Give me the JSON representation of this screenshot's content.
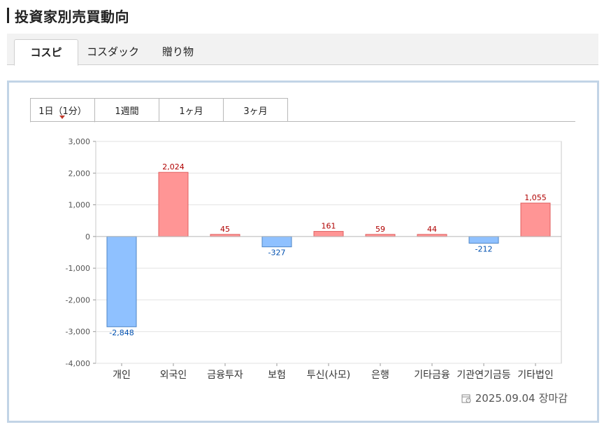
{
  "page": {
    "title": "投資家別売買動向"
  },
  "main_tabs": [
    {
      "label": "コスピ",
      "active": true
    },
    {
      "label": "コスダック",
      "active": false
    },
    {
      "label": "贈り物",
      "active": false
    }
  ],
  "period_tabs": [
    {
      "label": "1日（1分）",
      "active": true
    },
    {
      "label": "1週間",
      "active": false
    },
    {
      "label": "1ヶ月",
      "active": false
    },
    {
      "label": "3ヶ月",
      "active": false
    }
  ],
  "footer": {
    "date": "2025.09.04",
    "status": "장마감"
  },
  "colors": {
    "positive": "#ff9595",
    "positive_edge": "#e06060",
    "negative": "#8fc1ff",
    "negative_edge": "#4f86c6",
    "positive_label": "#b00000",
    "negative_label": "#0050b0"
  },
  "chart_data": {
    "type": "bar",
    "categories": [
      "개인",
      "외국인",
      "금융투자",
      "보험",
      "투신(사모)",
      "은행",
      "기타금융",
      "기관연기금등",
      "기타법인"
    ],
    "values": [
      -2848,
      2024,
      45,
      -327,
      161,
      59,
      44,
      -212,
      1055
    ],
    "value_labels": [
      "-2,848",
      "2,024",
      "45",
      "-327",
      "161",
      "59",
      "44",
      "-212",
      "1,055"
    ],
    "ylim": [
      -4000,
      3000
    ],
    "yticks": [
      3000,
      2000,
      1000,
      0,
      -1000,
      -2000,
      -3000,
      -4000
    ],
    "ytick_labels": [
      "3,000",
      "2,000",
      "1,000",
      "0",
      "-1,000",
      "-2,000",
      "-3,000",
      "-4,000"
    ],
    "grid": true,
    "xlabel": "",
    "ylabel": ""
  }
}
